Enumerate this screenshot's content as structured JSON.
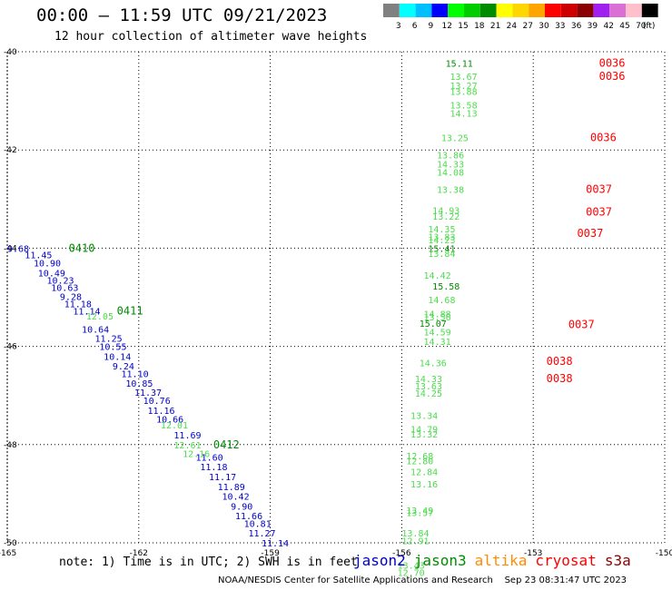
{
  "header": {
    "title": "00:00 – 11:59 UTC 09/21/2023",
    "subtitle": "12 hour collection of altimeter wave heights"
  },
  "color_scale": {
    "labels": [
      "3",
      "6",
      "9",
      "12",
      "15",
      "18",
      "21",
      "24",
      "27",
      "30",
      "33",
      "36",
      "39",
      "42",
      "45",
      "70",
      "(ft)"
    ],
    "colors": [
      "#808080",
      "#00ffff",
      "#00bfff",
      "#0000ff",
      "#00ff00",
      "#00cd00",
      "#008b00",
      "#ffff00",
      "#ffd700",
      "#ffa500",
      "#ff0000",
      "#cd0000",
      "#8b0000",
      "#a020f0",
      "#da70d6",
      "#ffc0cb",
      "#000000"
    ]
  },
  "chart_data": {
    "type": "scatter",
    "title": "00:00 – 11:59 UTC 09/21/2023",
    "subtitle": "12 hour collection of altimeter wave heights",
    "xlim": [
      -165,
      -150
    ],
    "ylim": [
      -50,
      -40
    ],
    "x_ticks": [
      "-165",
      "-162",
      "-159",
      "-156",
      "-153",
      "-150"
    ],
    "y_ticks": [
      "-40",
      "-42",
      "-44",
      "-46",
      "-48",
      "-50"
    ],
    "grid": true,
    "series": [
      {
        "name": "jason2",
        "color": "#0000cd",
        "points": [
          {
            "x": -165.0,
            "y": -44.0,
            "v": "9.68"
          },
          {
            "x": -164.6,
            "y": -44.13,
            "v": "11.45"
          },
          {
            "x": -164.4,
            "y": -44.3,
            "v": "10.90"
          },
          {
            "x": -164.3,
            "y": -44.5,
            "v": "10.49"
          },
          {
            "x": -164.1,
            "y": -44.65,
            "v": "10.23"
          },
          {
            "x": -164.0,
            "y": -44.8,
            "v": "10.63"
          },
          {
            "x": -163.8,
            "y": -44.98,
            "v": "9.28"
          },
          {
            "x": -163.7,
            "y": -45.13,
            "v": "11.18"
          },
          {
            "x": -163.5,
            "y": -45.28,
            "v": "11.14"
          },
          {
            "x": -163.3,
            "y": -45.65,
            "v": "10.64"
          },
          {
            "x": -163.0,
            "y": -45.83,
            "v": "11.25"
          },
          {
            "x": -162.9,
            "y": -46.0,
            "v": "10.55"
          },
          {
            "x": -162.8,
            "y": -46.2,
            "v": "10.14"
          },
          {
            "x": -162.6,
            "y": -46.4,
            "v": "9.24"
          },
          {
            "x": -162.4,
            "y": -46.55,
            "v": "11.10"
          },
          {
            "x": -162.3,
            "y": -46.75,
            "v": "10.85"
          },
          {
            "x": -162.1,
            "y": -46.93,
            "v": "11.37"
          },
          {
            "x": -161.9,
            "y": -47.1,
            "v": "10.76"
          },
          {
            "x": -161.8,
            "y": -47.3,
            "v": "11.16"
          },
          {
            "x": -161.6,
            "y": -47.48,
            "v": "10.66"
          },
          {
            "x": -161.2,
            "y": -47.8,
            "v": "11.69"
          },
          {
            "x": -160.7,
            "y": -48.25,
            "v": "11.60"
          },
          {
            "x": -160.6,
            "y": -48.45,
            "v": "11.18"
          },
          {
            "x": -160.4,
            "y": -48.65,
            "v": "11.17"
          },
          {
            "x": -160.2,
            "y": -48.85,
            "v": "11.89"
          },
          {
            "x": -160.1,
            "y": -49.05,
            "v": "10.42"
          },
          {
            "x": -159.9,
            "y": -49.25,
            "v": "9.90"
          },
          {
            "x": -159.8,
            "y": -49.45,
            "v": "11.66"
          },
          {
            "x": -159.6,
            "y": -49.6,
            "v": "10.81"
          },
          {
            "x": -159.5,
            "y": -49.8,
            "v": "11.27"
          },
          {
            "x": -159.2,
            "y": -50.0,
            "v": "11.14"
          }
        ]
      },
      {
        "name": "jason3",
        "color": "#008b00",
        "points": [
          {
            "x": -155.0,
            "y": -40.23,
            "v": "15.11"
          },
          {
            "x": -155.4,
            "y": -44.0,
            "v": "15.41"
          },
          {
            "x": -155.3,
            "y": -44.77,
            "v": "15.58"
          },
          {
            "x": -155.6,
            "y": -45.53,
            "v": "15.07"
          }
        ]
      },
      {
        "name": "jason3-light",
        "color": "#4cdc4c",
        "points": [
          {
            "x": -154.9,
            "y": -40.5,
            "v": "13.67"
          },
          {
            "x": -154.9,
            "y": -40.68,
            "v": "13.27"
          },
          {
            "x": -154.9,
            "y": -40.8,
            "v": "13.88"
          },
          {
            "x": -154.9,
            "y": -41.08,
            "v": "13.58"
          },
          {
            "x": -154.9,
            "y": -41.25,
            "v": "14.13"
          },
          {
            "x": -155.1,
            "y": -41.75,
            "v": "13.25"
          },
          {
            "x": -155.2,
            "y": -42.1,
            "v": "13.86"
          },
          {
            "x": -155.2,
            "y": -42.28,
            "v": "14.33"
          },
          {
            "x": -155.2,
            "y": -42.45,
            "v": "14.08"
          },
          {
            "x": -155.2,
            "y": -42.8,
            "v": "13.38"
          },
          {
            "x": -155.3,
            "y": -43.23,
            "v": "14.93"
          },
          {
            "x": -155.3,
            "y": -43.35,
            "v": "13.22"
          },
          {
            "x": -155.4,
            "y": -43.6,
            "v": "14.35"
          },
          {
            "x": -155.4,
            "y": -43.76,
            "v": "13.83"
          },
          {
            "x": -155.4,
            "y": -43.83,
            "v": "14.23"
          },
          {
            "x": -155.4,
            "y": -44.1,
            "v": "13.84"
          },
          {
            "x": -155.5,
            "y": -44.55,
            "v": "14.42"
          },
          {
            "x": -155.4,
            "y": -45.05,
            "v": "14.68"
          },
          {
            "x": -155.5,
            "y": -45.33,
            "v": "14.88"
          },
          {
            "x": -155.5,
            "y": -45.4,
            "v": "13.56"
          },
          {
            "x": -155.5,
            "y": -45.7,
            "v": "14.59"
          },
          {
            "x": -155.5,
            "y": -45.9,
            "v": "14.31"
          },
          {
            "x": -155.6,
            "y": -46.33,
            "v": "14.36"
          },
          {
            "x": -155.7,
            "y": -46.65,
            "v": "14.33"
          },
          {
            "x": -155.7,
            "y": -46.8,
            "v": "13.63"
          },
          {
            "x": -155.7,
            "y": -46.95,
            "v": "14.25"
          },
          {
            "x": -155.8,
            "y": -47.4,
            "v": "13.34"
          },
          {
            "x": -155.8,
            "y": -47.68,
            "v": "14.79"
          },
          {
            "x": -155.8,
            "y": -47.78,
            "v": "13.32"
          },
          {
            "x": -155.9,
            "y": -48.23,
            "v": "12.68"
          },
          {
            "x": -155.9,
            "y": -48.33,
            "v": "12.80"
          },
          {
            "x": -155.8,
            "y": -48.55,
            "v": "12.84"
          },
          {
            "x": -155.8,
            "y": -48.8,
            "v": "13.16"
          },
          {
            "x": -155.9,
            "y": -49.33,
            "v": "13.49"
          },
          {
            "x": -155.9,
            "y": -49.38,
            "v": "13.57"
          },
          {
            "x": -156.0,
            "y": -49.8,
            "v": "13.84"
          },
          {
            "x": -156.0,
            "y": -49.95,
            "v": "12.91"
          },
          {
            "x": -156.1,
            "y": -50.45,
            "v": "13.43"
          },
          {
            "x": -156.1,
            "y": -50.6,
            "v": "12.70"
          },
          {
            "x": -163.2,
            "y": -45.38,
            "v": "12.05"
          },
          {
            "x": -161.5,
            "y": -47.6,
            "v": "12.01"
          },
          {
            "x": -161.2,
            "y": -48.0,
            "v": "12.61"
          },
          {
            "x": -161.0,
            "y": -48.18,
            "v": "12.16"
          }
        ]
      }
    ],
    "time_labels": [
      {
        "x": -151.5,
        "y": -40.23,
        "t": "0036",
        "color": "#ff0000"
      },
      {
        "x": -151.5,
        "y": -40.5,
        "t": "0036",
        "color": "#ff0000"
      },
      {
        "x": -151.7,
        "y": -41.75,
        "t": "0036",
        "color": "#ff0000"
      },
      {
        "x": -151.8,
        "y": -42.8,
        "t": "0037",
        "color": "#ff0000"
      },
      {
        "x": -151.8,
        "y": -43.26,
        "t": "0037",
        "color": "#ff0000"
      },
      {
        "x": -152.0,
        "y": -43.7,
        "t": "0037",
        "color": "#ff0000"
      },
      {
        "x": -152.2,
        "y": -45.55,
        "t": "0037",
        "color": "#ff0000"
      },
      {
        "x": -152.7,
        "y": -46.3,
        "t": "0038",
        "color": "#ff0000"
      },
      {
        "x": -152.7,
        "y": -46.65,
        "t": "0038",
        "color": "#ff0000"
      },
      {
        "x": -163.6,
        "y": -44.0,
        "t": "0410",
        "color": "#008b00"
      },
      {
        "x": -162.5,
        "y": -45.28,
        "t": "0411",
        "color": "#008b00"
      },
      {
        "x": -160.3,
        "y": -48.0,
        "t": "0412",
        "color": "#008b00"
      }
    ]
  },
  "footer": {
    "note": "note: 1) Time is in UTC; 2) SWH is in feet",
    "credit": "NOAA/NESDIS Center for Satellite Applications and Research    Sep 23 08:31:47 UTC 2023"
  },
  "satellites": [
    {
      "name": "jason2",
      "color": "#0000cd"
    },
    {
      "name": "jason3",
      "color": "#008b00"
    },
    {
      "name": "altika",
      "color": "#ff8c00"
    },
    {
      "name": "cryosat",
      "color": "#ff0000"
    },
    {
      "name": "s3a",
      "color": "#8b0000"
    }
  ]
}
